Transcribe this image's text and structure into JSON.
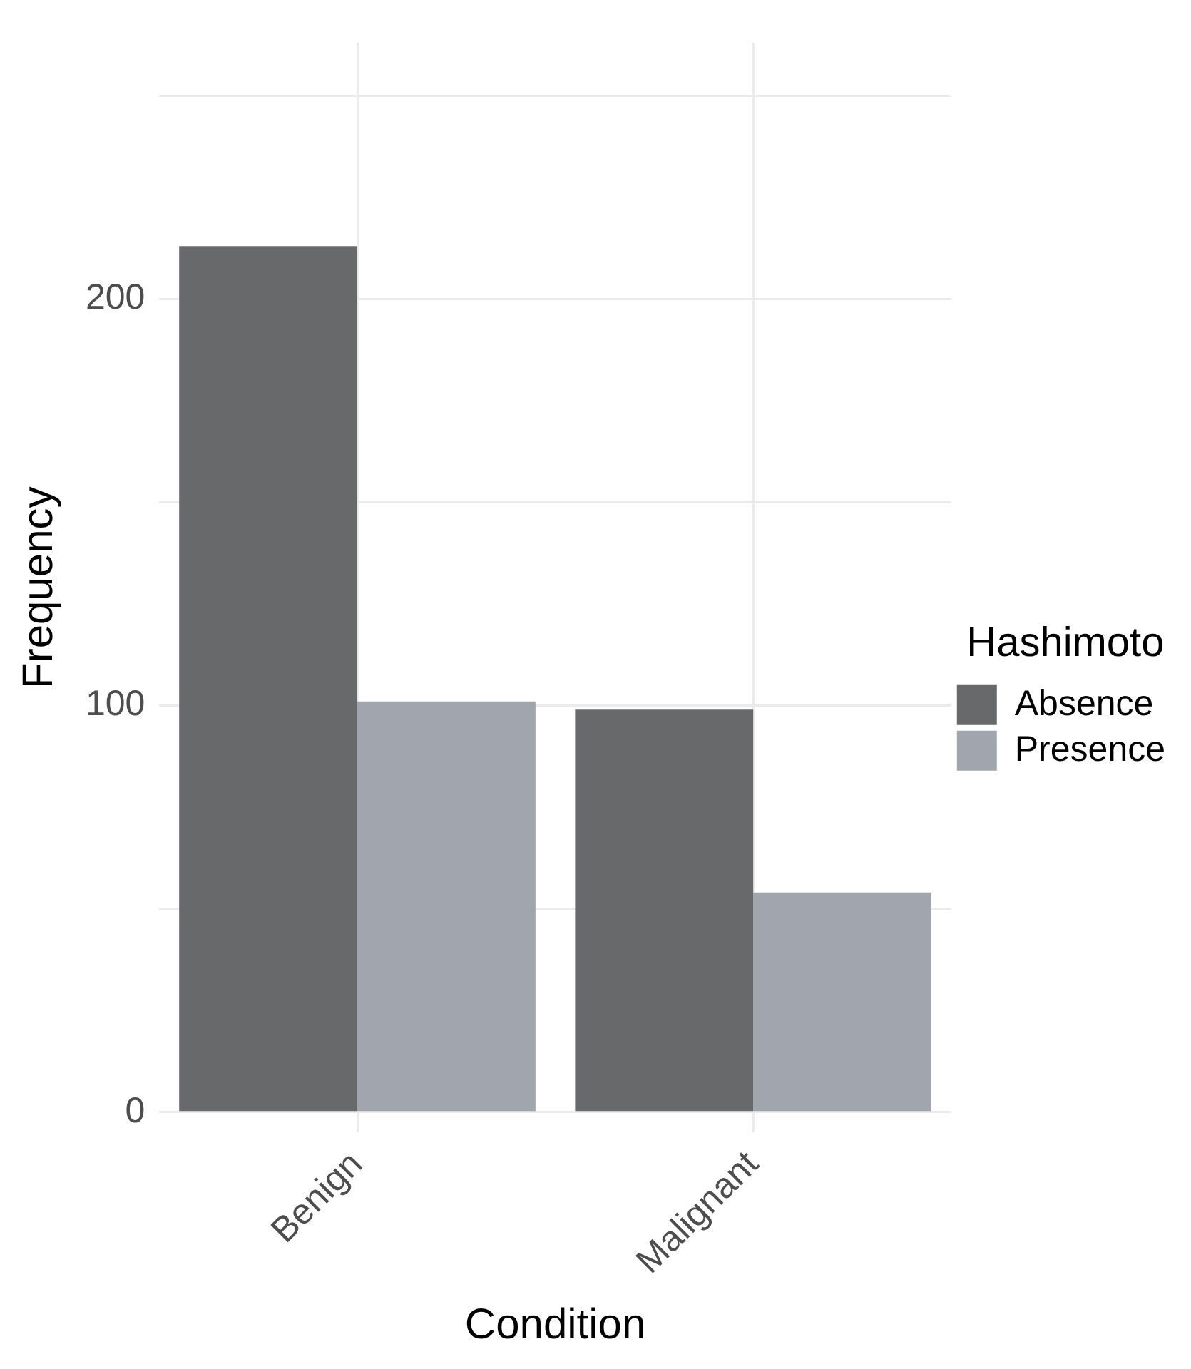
{
  "chart_data": {
    "type": "bar",
    "xlabel": "Condition",
    "ylabel": "Frequency",
    "legend_title": "Hashimoto",
    "categories": [
      "Benign",
      "Malignant"
    ],
    "series": [
      {
        "name": "Absence",
        "color": "#68696b",
        "values": [
          213,
          99
        ]
      },
      {
        "name": "Presence",
        "color": "#a1a5ad",
        "values": [
          101,
          54
        ]
      }
    ],
    "ylim": [
      -5,
      263
    ],
    "yticks": [
      0,
      {
        "value": 50,
        "label": null
      },
      100,
      {
        "value": 150,
        "label": null
      },
      200,
      {
        "value": 250,
        "label": null
      }
    ],
    "grid": true,
    "legend": "right"
  }
}
